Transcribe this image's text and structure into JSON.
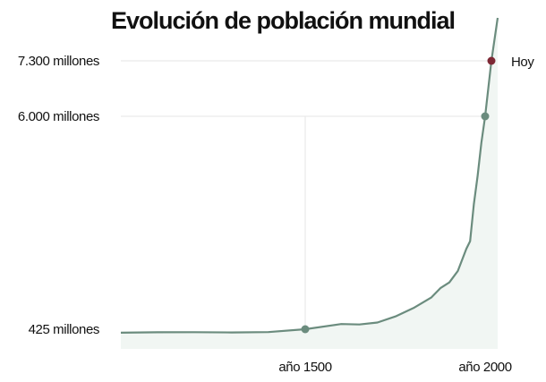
{
  "chart_data": {
    "type": "area",
    "title": "Evolución de población mundial",
    "xlabel": "",
    "ylabel": "",
    "x_ticks": [
      {
        "x": 1500,
        "label": "año 1500"
      },
      {
        "x": 2000,
        "label": "año 2000"
      }
    ],
    "y_ticks": [
      {
        "y": 425,
        "label": "425 millones"
      },
      {
        "y": 6000,
        "label": "6.000 millones"
      },
      {
        "y": 7300,
        "label": "7.300 millones"
      }
    ],
    "series": [
      {
        "x": [
          1000,
          1100,
          1200,
          1300,
          1400,
          1500,
          1600,
          1650,
          1700,
          1750,
          1800,
          1850,
          1875,
          1900,
          1925,
          1950,
          1960,
          1970,
          1980,
          1990,
          2000,
          2015,
          2030
        ],
        "y": [
          273,
          295,
          298,
          285,
          300,
          425,
          560,
          550,
          600,
          760,
          980,
          1260,
          1500,
          1650,
          1950,
          2530,
          2730,
          3700,
          4440,
          5310,
          6000,
          7300,
          8300
        ]
      }
    ],
    "markers": [
      {
        "x": 1500,
        "y": 425,
        "label": ""
      },
      {
        "x": 2000,
        "y": 6000,
        "label": ""
      },
      {
        "x": 2015,
        "y": 7300,
        "label": "Hoy"
      }
    ],
    "grid": true,
    "colors": {
      "line": "#6b8c7e",
      "area": "#f1f6f3",
      "today": "#7d2834",
      "grid": "#e6e6e6"
    }
  }
}
